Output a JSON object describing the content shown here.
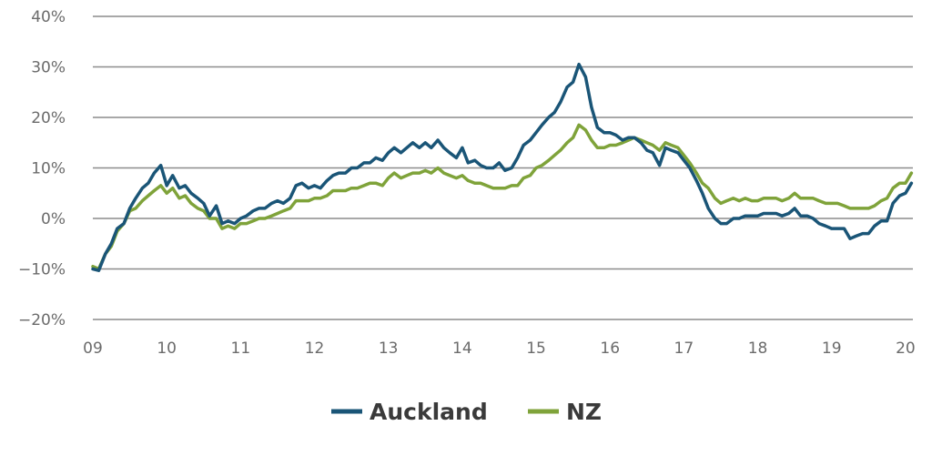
{
  "chart_data": {
    "type": "line",
    "ylim": [
      -20,
      40
    ],
    "xlim": [
      2009,
      2020.1
    ],
    "yticks": [
      {
        "value": 40,
        "label": "40%"
      },
      {
        "value": 30,
        "label": "30%"
      },
      {
        "value": 20,
        "label": "20%"
      },
      {
        "value": 10,
        "label": "10%"
      },
      {
        "value": 0,
        "label": "0%"
      },
      {
        "value": -10,
        "label": "−10%"
      },
      {
        "value": -20,
        "label": "−20%"
      }
    ],
    "xticks": [
      {
        "value": 2009,
        "label": "09"
      },
      {
        "value": 2010,
        "label": "10"
      },
      {
        "value": 2011,
        "label": "11"
      },
      {
        "value": 2012,
        "label": "12"
      },
      {
        "value": 2013,
        "label": "13"
      },
      {
        "value": 2014,
        "label": "14"
      },
      {
        "value": 2015,
        "label": "15"
      },
      {
        "value": 2016,
        "label": "16"
      },
      {
        "value": 2017,
        "label": "17"
      },
      {
        "value": 2018,
        "label": "18"
      },
      {
        "value": 2019,
        "label": "19"
      },
      {
        "value": 2020,
        "label": "20"
      }
    ],
    "grid": true,
    "legend_position": "bottom-center",
    "series": [
      {
        "name": "Auckland",
        "color": "#1a5577",
        "points": [
          [
            2009.0,
            -10.0
          ],
          [
            2009.08,
            -10.3
          ],
          [
            2009.17,
            -7
          ],
          [
            2009.25,
            -5
          ],
          [
            2009.33,
            -2
          ],
          [
            2009.42,
            -1
          ],
          [
            2009.5,
            2
          ],
          [
            2009.58,
            4
          ],
          [
            2009.67,
            6
          ],
          [
            2009.75,
            7
          ],
          [
            2009.83,
            9
          ],
          [
            2009.92,
            10.5
          ],
          [
            2010.0,
            6.5
          ],
          [
            2010.08,
            8.5
          ],
          [
            2010.17,
            6
          ],
          [
            2010.25,
            6.5
          ],
          [
            2010.33,
            5
          ],
          [
            2010.42,
            4
          ],
          [
            2010.5,
            3
          ],
          [
            2010.58,
            0.5
          ],
          [
            2010.67,
            2.5
          ],
          [
            2010.75,
            -1
          ],
          [
            2010.83,
            -0.5
          ],
          [
            2010.92,
            -1
          ],
          [
            2011.0,
            0
          ],
          [
            2011.08,
            0.5
          ],
          [
            2011.17,
            1.5
          ],
          [
            2011.25,
            2
          ],
          [
            2011.33,
            2
          ],
          [
            2011.42,
            3
          ],
          [
            2011.5,
            3.5
          ],
          [
            2011.58,
            3
          ],
          [
            2011.67,
            4
          ],
          [
            2011.75,
            6.5
          ],
          [
            2011.83,
            7
          ],
          [
            2011.92,
            6
          ],
          [
            2012.0,
            6.5
          ],
          [
            2012.08,
            6
          ],
          [
            2012.17,
            7.5
          ],
          [
            2012.25,
            8.5
          ],
          [
            2012.33,
            9
          ],
          [
            2012.42,
            9
          ],
          [
            2012.5,
            10
          ],
          [
            2012.58,
            10
          ],
          [
            2012.67,
            11
          ],
          [
            2012.75,
            11
          ],
          [
            2012.83,
            12
          ],
          [
            2012.92,
            11.5
          ],
          [
            2013.0,
            13
          ],
          [
            2013.08,
            14
          ],
          [
            2013.17,
            13
          ],
          [
            2013.25,
            14
          ],
          [
            2013.33,
            15
          ],
          [
            2013.42,
            14
          ],
          [
            2013.5,
            15
          ],
          [
            2013.58,
            14
          ],
          [
            2013.67,
            15.5
          ],
          [
            2013.75,
            14
          ],
          [
            2013.83,
            13
          ],
          [
            2013.92,
            12
          ],
          [
            2014.0,
            14
          ],
          [
            2014.08,
            11
          ],
          [
            2014.17,
            11.5
          ],
          [
            2014.25,
            10.5
          ],
          [
            2014.33,
            10
          ],
          [
            2014.42,
            10
          ],
          [
            2014.5,
            11
          ],
          [
            2014.58,
            9.5
          ],
          [
            2014.67,
            10
          ],
          [
            2014.75,
            12
          ],
          [
            2014.83,
            14.5
          ],
          [
            2014.92,
            15.5
          ],
          [
            2015.0,
            17
          ],
          [
            2015.08,
            18.5
          ],
          [
            2015.17,
            20
          ],
          [
            2015.25,
            21
          ],
          [
            2015.33,
            23
          ],
          [
            2015.42,
            26
          ],
          [
            2015.5,
            27
          ],
          [
            2015.58,
            30.5
          ],
          [
            2015.67,
            28
          ],
          [
            2015.75,
            22
          ],
          [
            2015.83,
            18
          ],
          [
            2015.92,
            17
          ],
          [
            2016.0,
            17
          ],
          [
            2016.08,
            16.5
          ],
          [
            2016.17,
            15.5
          ],
          [
            2016.25,
            16
          ],
          [
            2016.33,
            16
          ],
          [
            2016.42,
            15
          ],
          [
            2016.5,
            13.5
          ],
          [
            2016.58,
            13
          ],
          [
            2016.67,
            10.5
          ],
          [
            2016.75,
            14
          ],
          [
            2016.83,
            13.5
          ],
          [
            2016.92,
            13
          ],
          [
            2017.0,
            11.5
          ],
          [
            2017.08,
            10
          ],
          [
            2017.17,
            7.5
          ],
          [
            2017.25,
            5
          ],
          [
            2017.33,
            2
          ],
          [
            2017.42,
            0
          ],
          [
            2017.5,
            -1
          ],
          [
            2017.58,
            -1
          ],
          [
            2017.67,
            0
          ],
          [
            2017.75,
            0
          ],
          [
            2017.83,
            0.5
          ],
          [
            2017.92,
            0.5
          ],
          [
            2018.0,
            0.5
          ],
          [
            2018.08,
            1
          ],
          [
            2018.17,
            1
          ],
          [
            2018.25,
            1
          ],
          [
            2018.33,
            0.5
          ],
          [
            2018.42,
            1
          ],
          [
            2018.5,
            2
          ],
          [
            2018.58,
            0.5
          ],
          [
            2018.67,
            0.5
          ],
          [
            2018.75,
            0
          ],
          [
            2018.83,
            -1
          ],
          [
            2018.92,
            -1.5
          ],
          [
            2019.0,
            -2
          ],
          [
            2019.08,
            -2
          ],
          [
            2019.17,
            -2
          ],
          [
            2019.25,
            -4
          ],
          [
            2019.33,
            -3.5
          ],
          [
            2019.42,
            -3
          ],
          [
            2019.5,
            -3
          ],
          [
            2019.58,
            -1.5
          ],
          [
            2019.67,
            -0.5
          ],
          [
            2019.75,
            -0.5
          ],
          [
            2019.83,
            3
          ],
          [
            2019.92,
            4.5
          ],
          [
            2020.0,
            5
          ],
          [
            2020.08,
            7
          ]
        ]
      },
      {
        "name": "NZ",
        "color": "#7fa33a",
        "points": [
          [
            2009.0,
            -9.5
          ],
          [
            2009.08,
            -10
          ],
          [
            2009.17,
            -7
          ],
          [
            2009.25,
            -5.5
          ],
          [
            2009.33,
            -2.5
          ],
          [
            2009.42,
            -1
          ],
          [
            2009.5,
            1.5
          ],
          [
            2009.58,
            2
          ],
          [
            2009.67,
            3.5
          ],
          [
            2009.75,
            4.5
          ],
          [
            2009.83,
            5.5
          ],
          [
            2009.92,
            6.5
          ],
          [
            2010.0,
            5
          ],
          [
            2010.08,
            6
          ],
          [
            2010.17,
            4
          ],
          [
            2010.25,
            4.5
          ],
          [
            2010.33,
            3
          ],
          [
            2010.42,
            2
          ],
          [
            2010.5,
            1.5
          ],
          [
            2010.58,
            0
          ],
          [
            2010.67,
            0
          ],
          [
            2010.75,
            -2
          ],
          [
            2010.83,
            -1.5
          ],
          [
            2010.92,
            -2
          ],
          [
            2011.0,
            -1
          ],
          [
            2011.08,
            -1
          ],
          [
            2011.17,
            -0.5
          ],
          [
            2011.25,
            0
          ],
          [
            2011.33,
            0
          ],
          [
            2011.42,
            0.5
          ],
          [
            2011.5,
            1
          ],
          [
            2011.58,
            1.5
          ],
          [
            2011.67,
            2
          ],
          [
            2011.75,
            3.5
          ],
          [
            2011.83,
            3.5
          ],
          [
            2011.92,
            3.5
          ],
          [
            2012.0,
            4
          ],
          [
            2012.08,
            4
          ],
          [
            2012.17,
            4.5
          ],
          [
            2012.25,
            5.5
          ],
          [
            2012.33,
            5.5
          ],
          [
            2012.42,
            5.5
          ],
          [
            2012.5,
            6
          ],
          [
            2012.58,
            6
          ],
          [
            2012.67,
            6.5
          ],
          [
            2012.75,
            7
          ],
          [
            2012.83,
            7
          ],
          [
            2012.92,
            6.5
          ],
          [
            2013.0,
            8
          ],
          [
            2013.08,
            9
          ],
          [
            2013.17,
            8
          ],
          [
            2013.25,
            8.5
          ],
          [
            2013.33,
            9
          ],
          [
            2013.42,
            9
          ],
          [
            2013.5,
            9.5
          ],
          [
            2013.58,
            9
          ],
          [
            2013.67,
            10
          ],
          [
            2013.75,
            9
          ],
          [
            2013.83,
            8.5
          ],
          [
            2013.92,
            8
          ],
          [
            2014.0,
            8.5
          ],
          [
            2014.08,
            7.5
          ],
          [
            2014.17,
            7
          ],
          [
            2014.25,
            7
          ],
          [
            2014.33,
            6.5
          ],
          [
            2014.42,
            6
          ],
          [
            2014.5,
            6
          ],
          [
            2014.58,
            6
          ],
          [
            2014.67,
            6.5
          ],
          [
            2014.75,
            6.5
          ],
          [
            2014.83,
            8
          ],
          [
            2014.92,
            8.5
          ],
          [
            2015.0,
            10
          ],
          [
            2015.08,
            10.5
          ],
          [
            2015.17,
            11.5
          ],
          [
            2015.25,
            12.5
          ],
          [
            2015.33,
            13.5
          ],
          [
            2015.42,
            15
          ],
          [
            2015.5,
            16
          ],
          [
            2015.58,
            18.5
          ],
          [
            2015.67,
            17.5
          ],
          [
            2015.75,
            15.5
          ],
          [
            2015.83,
            14
          ],
          [
            2015.92,
            14
          ],
          [
            2016.0,
            14.5
          ],
          [
            2016.08,
            14.5
          ],
          [
            2016.17,
            15
          ],
          [
            2016.25,
            15.5
          ],
          [
            2016.33,
            16
          ],
          [
            2016.42,
            15.5
          ],
          [
            2016.5,
            15
          ],
          [
            2016.58,
            14.5
          ],
          [
            2016.67,
            13.5
          ],
          [
            2016.75,
            15
          ],
          [
            2016.83,
            14.5
          ],
          [
            2016.92,
            14
          ],
          [
            2017.0,
            12.5
          ],
          [
            2017.08,
            11
          ],
          [
            2017.17,
            9
          ],
          [
            2017.25,
            7
          ],
          [
            2017.33,
            6
          ],
          [
            2017.42,
            4
          ],
          [
            2017.5,
            3
          ],
          [
            2017.58,
            3.5
          ],
          [
            2017.67,
            4
          ],
          [
            2017.75,
            3.5
          ],
          [
            2017.83,
            4
          ],
          [
            2017.92,
            3.5
          ],
          [
            2018.0,
            3.5
          ],
          [
            2018.08,
            4
          ],
          [
            2018.17,
            4
          ],
          [
            2018.25,
            4
          ],
          [
            2018.33,
            3.5
          ],
          [
            2018.42,
            4
          ],
          [
            2018.5,
            5
          ],
          [
            2018.58,
            4
          ],
          [
            2018.67,
            4
          ],
          [
            2018.75,
            4
          ],
          [
            2018.83,
            3.5
          ],
          [
            2018.92,
            3
          ],
          [
            2019.0,
            3
          ],
          [
            2019.08,
            3
          ],
          [
            2019.17,
            2.5
          ],
          [
            2019.25,
            2
          ],
          [
            2019.33,
            2
          ],
          [
            2019.42,
            2
          ],
          [
            2019.5,
            2
          ],
          [
            2019.58,
            2.5
          ],
          [
            2019.67,
            3.5
          ],
          [
            2019.75,
            4
          ],
          [
            2019.83,
            6
          ],
          [
            2019.92,
            7
          ],
          [
            2020.0,
            7
          ],
          [
            2020.08,
            9
          ]
        ]
      }
    ]
  }
}
